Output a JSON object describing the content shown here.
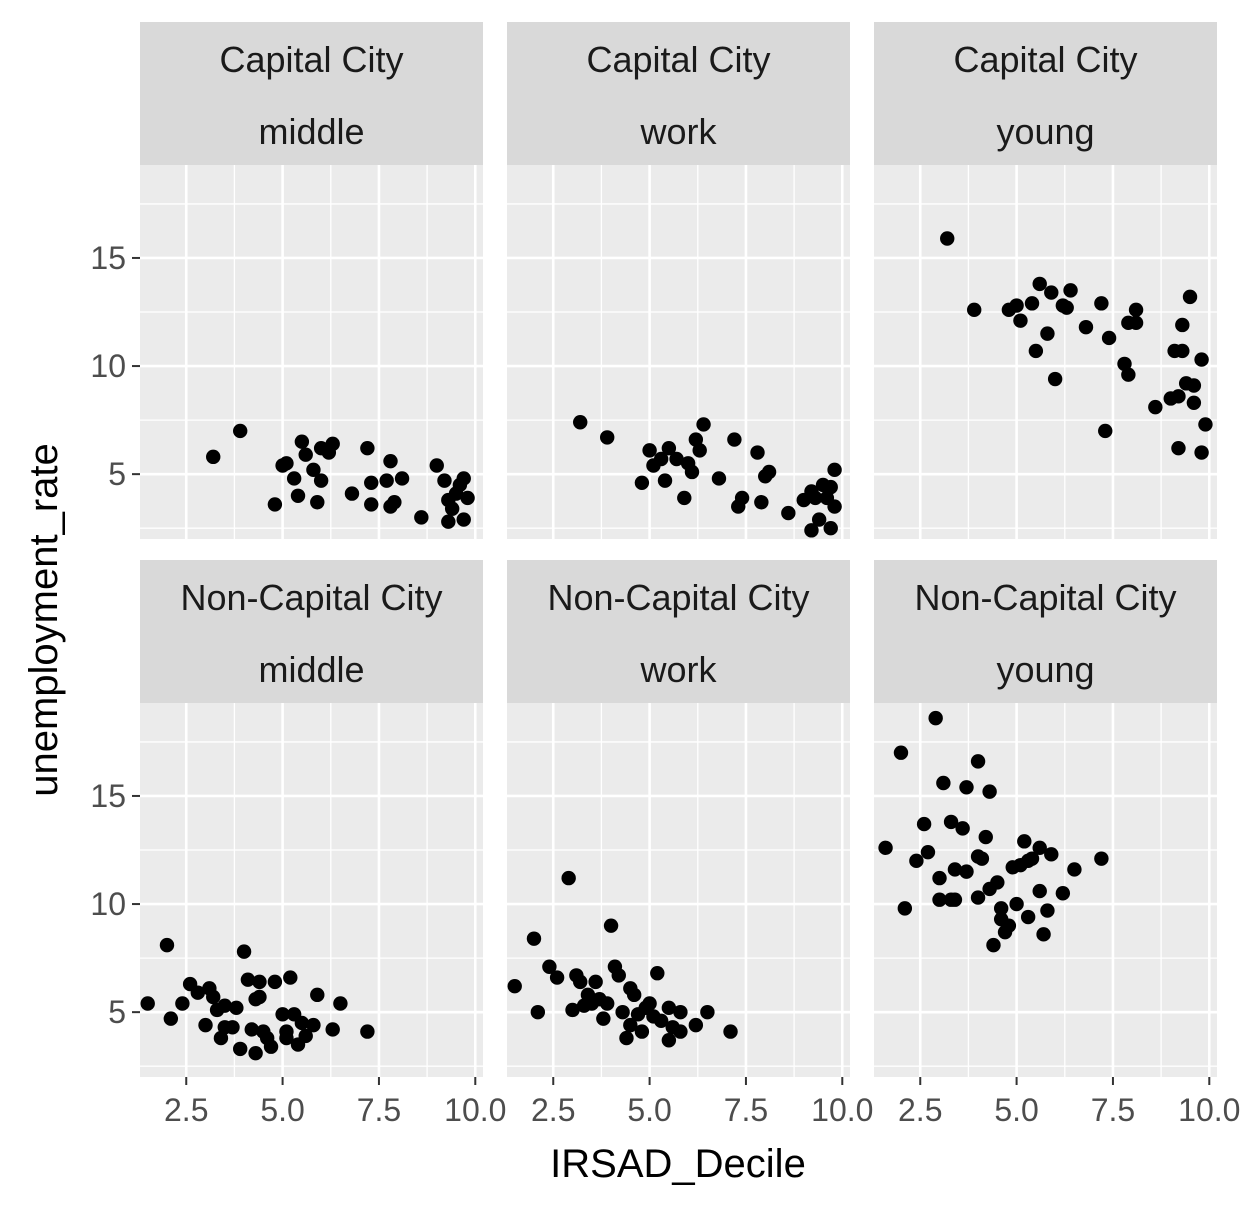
{
  "chart_data": {
    "type": "scatter",
    "xlabel": "IRSAD_Decile",
    "ylabel": "unemployment_rate",
    "xlim": [
      1.3,
      10.2
    ],
    "ylim": [
      2.0,
      19.3
    ],
    "x_ticks": [
      2.5,
      5.0,
      7.5,
      10.0
    ],
    "x_tick_labels": [
      "2.5",
      "5.0",
      "7.5",
      "10.0"
    ],
    "y_ticks": [
      5,
      10,
      15
    ],
    "y_tick_labels": [
      "5",
      "10",
      "15"
    ],
    "grid": true,
    "facet_rows": [
      "Capital City",
      "Non-Capital City"
    ],
    "facet_cols": [
      "middle",
      "work",
      "young"
    ],
    "panel_bg": "#ebebeb",
    "strip_bg": "#d9d9d9",
    "grid_color": "#ffffff",
    "point_color": "#000000",
    "panels": [
      {
        "row": "Capital City",
        "col": "middle",
        "points": [
          [
            3.2,
            5.8
          ],
          [
            3.9,
            7.0
          ],
          [
            4.8,
            3.6
          ],
          [
            5.0,
            5.4
          ],
          [
            5.1,
            5.5
          ],
          [
            5.3,
            4.8
          ],
          [
            5.4,
            4.0
          ],
          [
            5.5,
            6.5
          ],
          [
            5.6,
            5.9
          ],
          [
            5.8,
            5.2
          ],
          [
            5.9,
            3.7
          ],
          [
            6.0,
            6.2
          ],
          [
            6.0,
            4.7
          ],
          [
            6.2,
            6.0
          ],
          [
            6.3,
            6.4
          ],
          [
            6.8,
            4.1
          ],
          [
            7.2,
            6.2
          ],
          [
            7.3,
            3.6
          ],
          [
            7.3,
            4.6
          ],
          [
            7.7,
            4.7
          ],
          [
            7.8,
            5.6
          ],
          [
            7.8,
            3.5
          ],
          [
            7.9,
            3.7
          ],
          [
            8.1,
            4.8
          ],
          [
            8.6,
            3.0
          ],
          [
            9.0,
            5.4
          ],
          [
            9.2,
            4.7
          ],
          [
            9.3,
            3.8
          ],
          [
            9.3,
            2.8
          ],
          [
            9.4,
            3.4
          ],
          [
            9.5,
            4.1
          ],
          [
            9.6,
            4.5
          ],
          [
            9.7,
            2.9
          ],
          [
            9.7,
            4.8
          ],
          [
            9.8,
            3.9
          ]
        ]
      },
      {
        "row": "Capital City",
        "col": "work",
        "points": [
          [
            3.2,
            7.4
          ],
          [
            3.9,
            6.7
          ],
          [
            4.8,
            4.6
          ],
          [
            5.0,
            6.1
          ],
          [
            5.1,
            5.4
          ],
          [
            5.3,
            5.7
          ],
          [
            5.4,
            4.7
          ],
          [
            5.5,
            6.2
          ],
          [
            5.7,
            5.7
          ],
          [
            5.9,
            3.9
          ],
          [
            6.0,
            5.5
          ],
          [
            6.1,
            5.1
          ],
          [
            6.2,
            6.6
          ],
          [
            6.3,
            6.1
          ],
          [
            6.4,
            7.3
          ],
          [
            6.8,
            4.8
          ],
          [
            7.2,
            6.6
          ],
          [
            7.3,
            3.5
          ],
          [
            7.4,
            3.9
          ],
          [
            7.8,
            6.0
          ],
          [
            7.9,
            3.7
          ],
          [
            8.0,
            4.9
          ],
          [
            8.1,
            5.1
          ],
          [
            8.6,
            3.2
          ],
          [
            9.0,
            3.8
          ],
          [
            9.2,
            4.2
          ],
          [
            9.2,
            2.4
          ],
          [
            9.3,
            3.9
          ],
          [
            9.4,
            2.9
          ],
          [
            9.5,
            4.5
          ],
          [
            9.6,
            3.9
          ],
          [
            9.7,
            4.4
          ],
          [
            9.7,
            2.5
          ],
          [
            9.8,
            3.5
          ],
          [
            9.8,
            5.2
          ]
        ]
      },
      {
        "row": "Capital City",
        "col": "young",
        "points": [
          [
            3.2,
            15.9
          ],
          [
            3.9,
            12.6
          ],
          [
            4.8,
            12.6
          ],
          [
            5.0,
            12.8
          ],
          [
            5.1,
            12.1
          ],
          [
            5.4,
            12.9
          ],
          [
            5.5,
            10.7
          ],
          [
            5.6,
            13.8
          ],
          [
            5.8,
            11.5
          ],
          [
            5.9,
            13.4
          ],
          [
            6.0,
            9.4
          ],
          [
            6.2,
            12.8
          ],
          [
            6.3,
            12.7
          ],
          [
            6.4,
            13.5
          ],
          [
            6.8,
            11.8
          ],
          [
            7.2,
            12.9
          ],
          [
            7.3,
            7.0
          ],
          [
            7.4,
            11.3
          ],
          [
            7.8,
            10.1
          ],
          [
            7.9,
            12.0
          ],
          [
            7.9,
            9.6
          ],
          [
            8.1,
            12.0
          ],
          [
            8.1,
            12.6
          ],
          [
            8.6,
            8.1
          ],
          [
            9.0,
            8.5
          ],
          [
            9.1,
            10.7
          ],
          [
            9.2,
            8.6
          ],
          [
            9.2,
            6.2
          ],
          [
            9.3,
            10.7
          ],
          [
            9.3,
            11.9
          ],
          [
            9.4,
            9.2
          ],
          [
            9.5,
            13.2
          ],
          [
            9.6,
            8.3
          ],
          [
            9.6,
            9.1
          ],
          [
            9.8,
            6.0
          ],
          [
            9.8,
            10.3
          ],
          [
            9.9,
            7.3
          ]
        ]
      },
      {
        "row": "Non-Capital City",
        "col": "middle",
        "points": [
          [
            1.5,
            5.4
          ],
          [
            2.0,
            8.1
          ],
          [
            2.1,
            4.7
          ],
          [
            2.4,
            5.4
          ],
          [
            2.6,
            6.3
          ],
          [
            2.8,
            5.9
          ],
          [
            3.0,
            4.4
          ],
          [
            3.1,
            6.1
          ],
          [
            3.2,
            5.7
          ],
          [
            3.3,
            5.1
          ],
          [
            3.4,
            3.8
          ],
          [
            3.5,
            4.3
          ],
          [
            3.5,
            5.3
          ],
          [
            3.7,
            4.3
          ],
          [
            3.8,
            5.2
          ],
          [
            4.0,
            7.8
          ],
          [
            3.9,
            3.3
          ],
          [
            4.1,
            6.5
          ],
          [
            4.2,
            4.2
          ],
          [
            4.3,
            5.6
          ],
          [
            4.3,
            3.1
          ],
          [
            4.4,
            6.4
          ],
          [
            4.4,
            5.7
          ],
          [
            4.5,
            4.1
          ],
          [
            4.6,
            3.8
          ],
          [
            4.7,
            3.4
          ],
          [
            4.8,
            6.4
          ],
          [
            5.0,
            4.9
          ],
          [
            5.1,
            4.1
          ],
          [
            5.1,
            3.8
          ],
          [
            5.2,
            6.6
          ],
          [
            5.3,
            4.9
          ],
          [
            5.4,
            3.5
          ],
          [
            5.5,
            4.5
          ],
          [
            5.6,
            3.9
          ],
          [
            5.8,
            4.4
          ],
          [
            5.9,
            5.8
          ],
          [
            6.3,
            4.2
          ],
          [
            6.5,
            5.4
          ],
          [
            7.2,
            4.1
          ]
        ]
      },
      {
        "row": "Non-Capital City",
        "col": "work",
        "points": [
          [
            1.5,
            6.2
          ],
          [
            2.0,
            8.4
          ],
          [
            2.1,
            5.0
          ],
          [
            2.4,
            7.1
          ],
          [
            2.6,
            6.6
          ],
          [
            2.9,
            11.2
          ],
          [
            3.0,
            5.1
          ],
          [
            3.1,
            6.7
          ],
          [
            3.2,
            6.4
          ],
          [
            3.3,
            5.3
          ],
          [
            3.4,
            5.8
          ],
          [
            3.5,
            5.4
          ],
          [
            3.6,
            6.4
          ],
          [
            3.7,
            5.6
          ],
          [
            3.8,
            4.7
          ],
          [
            4.0,
            9.0
          ],
          [
            3.9,
            5.4
          ],
          [
            4.1,
            7.1
          ],
          [
            4.2,
            6.7
          ],
          [
            4.3,
            5.0
          ],
          [
            4.4,
            3.8
          ],
          [
            4.5,
            4.4
          ],
          [
            4.5,
            6.1
          ],
          [
            4.6,
            5.8
          ],
          [
            4.7,
            4.9
          ],
          [
            4.8,
            4.1
          ],
          [
            4.9,
            5.2
          ],
          [
            5.0,
            5.4
          ],
          [
            5.1,
            4.8
          ],
          [
            5.2,
            6.8
          ],
          [
            5.3,
            4.6
          ],
          [
            5.5,
            5.2
          ],
          [
            5.5,
            3.7
          ],
          [
            5.6,
            4.3
          ],
          [
            5.8,
            5.0
          ],
          [
            5.8,
            4.1
          ],
          [
            6.2,
            4.4
          ],
          [
            6.5,
            5.0
          ],
          [
            7.1,
            4.1
          ]
        ]
      },
      {
        "row": "Non-Capital City",
        "col": "young",
        "points": [
          [
            1.6,
            12.6
          ],
          [
            2.0,
            17.0
          ],
          [
            2.1,
            9.8
          ],
          [
            2.4,
            12.0
          ],
          [
            2.6,
            13.7
          ],
          [
            2.7,
            12.4
          ],
          [
            2.9,
            18.6
          ],
          [
            3.0,
            11.2
          ],
          [
            3.0,
            10.2
          ],
          [
            3.1,
            15.6
          ],
          [
            3.3,
            10.2
          ],
          [
            3.3,
            13.8
          ],
          [
            3.4,
            11.6
          ],
          [
            3.4,
            10.2
          ],
          [
            3.6,
            13.5
          ],
          [
            3.7,
            15.4
          ],
          [
            3.7,
            11.5
          ],
          [
            4.0,
            16.6
          ],
          [
            4.0,
            12.2
          ],
          [
            4.0,
            10.3
          ],
          [
            4.1,
            12.1
          ],
          [
            4.2,
            13.1
          ],
          [
            4.3,
            15.2
          ],
          [
            4.3,
            10.7
          ],
          [
            4.4,
            8.1
          ],
          [
            4.5,
            11.0
          ],
          [
            4.6,
            9.8
          ],
          [
            4.6,
            9.3
          ],
          [
            4.7,
            8.7
          ],
          [
            4.8,
            9.0
          ],
          [
            4.9,
            11.7
          ],
          [
            5.0,
            10.0
          ],
          [
            5.1,
            11.8
          ],
          [
            5.2,
            12.9
          ],
          [
            5.3,
            9.4
          ],
          [
            5.3,
            12.0
          ],
          [
            5.4,
            12.1
          ],
          [
            5.6,
            12.6
          ],
          [
            5.6,
            10.6
          ],
          [
            5.7,
            8.6
          ],
          [
            5.8,
            9.7
          ],
          [
            5.9,
            12.3
          ],
          [
            6.2,
            10.5
          ],
          [
            6.5,
            11.6
          ],
          [
            7.2,
            12.1
          ]
        ]
      }
    ]
  }
}
